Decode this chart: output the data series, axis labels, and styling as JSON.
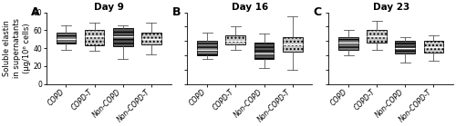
{
  "panels": [
    {
      "label": "A",
      "title": "Day 9",
      "ylim": [
        0,
        80
      ],
      "yticks": [
        0,
        20,
        40,
        60,
        80
      ],
      "show_ylabel": true,
      "ylabel": "Soluble elastin\nin supernatants\n(μg/10⁶ cells)",
      "categories": [
        "COPD",
        "COPD-T",
        "Non-COPD",
        "Non-COPD-T"
      ],
      "boxes": [
        {
          "whislo": 38,
          "q1": 45,
          "med": 50,
          "q3": 57,
          "whishi": 65
        },
        {
          "whislo": 37,
          "q1": 43,
          "med": 53,
          "q3": 60,
          "whishi": 68
        },
        {
          "whislo": 28,
          "q1": 42,
          "med": 53,
          "q3": 62,
          "whishi": 65
        },
        {
          "whislo": 33,
          "q1": 44,
          "med": 50,
          "q3": 57,
          "whishi": 68
        }
      ]
    },
    {
      "label": "B",
      "title": "Day 16",
      "ylim": [
        0,
        100
      ],
      "yticks": [
        0,
        20,
        40,
        60,
        80,
        100
      ],
      "show_ylabel": false,
      "ylabel": "",
      "categories": [
        "COPD",
        "COPD-T",
        "Non-COPD",
        "Non-COPD-T"
      ],
      "boxes": [
        {
          "whislo": 35,
          "q1": 40,
          "med": 48,
          "q3": 60,
          "whishi": 72
        },
        {
          "whislo": 48,
          "q1": 55,
          "med": 60,
          "q3": 68,
          "whishi": 80
        },
        {
          "whislo": 22,
          "q1": 35,
          "med": 43,
          "q3": 58,
          "whishi": 70
        },
        {
          "whislo": 20,
          "q1": 45,
          "med": 55,
          "q3": 65,
          "whishi": 95
        }
      ]
    },
    {
      "label": "C",
      "title": "Day 23",
      "ylim": [
        0,
        100
      ],
      "yticks": [
        0,
        20,
        40,
        60,
        80,
        100
      ],
      "show_ylabel": false,
      "ylabel": "",
      "categories": [
        "COPD",
        "COPD-T",
        "Non-COPD",
        "Non-COPD-T"
      ],
      "boxes": [
        {
          "whislo": 40,
          "q1": 48,
          "med": 58,
          "q3": 65,
          "whishi": 75
        },
        {
          "whislo": 48,
          "q1": 58,
          "med": 67,
          "q3": 75,
          "whishi": 88
        },
        {
          "whislo": 30,
          "q1": 42,
          "med": 50,
          "q3": 60,
          "whishi": 65
        },
        {
          "whislo": 32,
          "q1": 44,
          "med": 52,
          "q3": 60,
          "whishi": 68
        }
      ]
    }
  ],
  "dark_color": "#787878",
  "dark_color2": "#585858",
  "light_color": "#c8c8c8",
  "figure_bg": "#ffffff",
  "title_fontsize": 7.5,
  "label_fontsize": 9,
  "tick_fontsize": 5.5,
  "xticklabel_fontsize": 5.5,
  "ylabel_fontsize": 6
}
